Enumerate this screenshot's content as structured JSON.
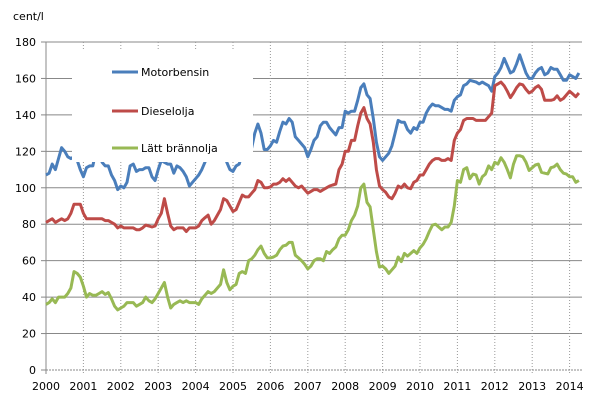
{
  "chart_data": {
    "type": "line",
    "title": "",
    "ylabel": "cent/l",
    "xlabel": "",
    "ylim": [
      0,
      180
    ],
    "yticks": [
      0,
      20,
      40,
      60,
      80,
      100,
      120,
      140,
      160,
      180
    ],
    "xticks": [
      "2000",
      "2001",
      "2002",
      "2003",
      "2004",
      "2005",
      "2006",
      "2007",
      "2008",
      "2009",
      "2010",
      "2011",
      "2012",
      "2013",
      "2014"
    ],
    "x_start": "2000-01",
    "x_frequency": "monthly",
    "grid": {
      "horizontal": "solid",
      "vertical": "dotted"
    },
    "legend_position": "top-left",
    "series": [
      {
        "name": "Motorbensin",
        "color": "#4a7ebb",
        "values": [
          107,
          108,
          113,
          110,
          116,
          122,
          120,
          117,
          116,
          117,
          115,
          110,
          106,
          111,
          112,
          112,
          120,
          122,
          114,
          112,
          112,
          107,
          104,
          99,
          101,
          100,
          103,
          112,
          113,
          109,
          110,
          110,
          111,
          111,
          106,
          104,
          110,
          115,
          114,
          113,
          113,
          108,
          112,
          111,
          109,
          106,
          101,
          103,
          105,
          107,
          110,
          114,
          118,
          115,
          117,
          118,
          117,
          119,
          114,
          110,
          109,
          112,
          113,
          119,
          118,
          118,
          122,
          130,
          135,
          130,
          121,
          121,
          123,
          126,
          125,
          131,
          136,
          135,
          138,
          136,
          128,
          126,
          124,
          122,
          117,
          121,
          126,
          128,
          134,
          136,
          136,
          133,
          131,
          129,
          133,
          133,
          142,
          141,
          142,
          142,
          148,
          155,
          157,
          151,
          149,
          138,
          125,
          117,
          115,
          117,
          119,
          123,
          130,
          137,
          136,
          136,
          132,
          130,
          133,
          132,
          136,
          136,
          141,
          144,
          146,
          145,
          145,
          144,
          143,
          143,
          142,
          148,
          150,
          151,
          156,
          157,
          159,
          158.5,
          158,
          157,
          158,
          157,
          156,
          153,
          161,
          163,
          166,
          171,
          167,
          163,
          164,
          168,
          173,
          168,
          163,
          160,
          160,
          163,
          165,
          166,
          162,
          163,
          166,
          165,
          165,
          162,
          159,
          159,
          162,
          161,
          160,
          163
        ]
      },
      {
        "name": "Dieselolja",
        "color": "#be4b48",
        "values": [
          81,
          82,
          83,
          81,
          82,
          83,
          82,
          83,
          86,
          91,
          91,
          91,
          86,
          83,
          83,
          83,
          83,
          83,
          83,
          82,
          82,
          81,
          80,
          78,
          79,
          78,
          78,
          78,
          78,
          77,
          77,
          78,
          79.5,
          79,
          78.5,
          79,
          83,
          86,
          94,
          86,
          79,
          77,
          78,
          78,
          78,
          76,
          78,
          78,
          78,
          79,
          82,
          83.5,
          85,
          80,
          82,
          85,
          88,
          94,
          93,
          90,
          87,
          88,
          92,
          96,
          95,
          95,
          97,
          99,
          104,
          103,
          100,
          100,
          100.5,
          102,
          102,
          103,
          105,
          103.5,
          105,
          103,
          101,
          100,
          101,
          99,
          97,
          98,
          99,
          99,
          98,
          99,
          100,
          101,
          101.5,
          102,
          110,
          113,
          120,
          120,
          126,
          126,
          134,
          141,
          144,
          138,
          135,
          125,
          110,
          101,
          99,
          97.5,
          95,
          94,
          97,
          101,
          100,
          102,
          100,
          99.5,
          103,
          104,
          107,
          107,
          110,
          113,
          115,
          116,
          116,
          115,
          115,
          116,
          115,
          126,
          130,
          132,
          137,
          138,
          138,
          138,
          137,
          137,
          137,
          137,
          139,
          141,
          156,
          157,
          158,
          156,
          153,
          149.5,
          152,
          155,
          157,
          156.5,
          154,
          152,
          153,
          155,
          156,
          154,
          148,
          148,
          148,
          148.5,
          150.5,
          148,
          149,
          151,
          153,
          151.5,
          150,
          152
        ]
      },
      {
        "name": "Lätt brännolja",
        "color": "#98b954",
        "values": [
          36,
          37,
          39,
          37,
          40,
          40,
          40,
          42,
          45,
          54,
          53,
          51,
          46,
          40,
          42,
          41,
          41,
          42,
          43,
          41.5,
          42.5,
          39,
          35,
          33,
          34,
          35,
          37,
          37,
          37,
          35,
          36,
          37,
          40,
          38,
          37,
          39,
          42,
          45,
          48,
          40,
          34,
          36,
          37,
          38,
          37,
          38,
          37,
          37,
          37,
          36,
          39,
          41,
          43,
          42,
          43,
          45,
          47,
          55,
          48,
          44,
          46,
          47,
          53,
          54,
          53,
          60,
          61,
          63,
          66,
          68,
          64,
          61.5,
          61.5,
          62,
          63,
          66,
          68,
          68.5,
          70,
          70,
          63,
          61.5,
          60,
          58,
          55.5,
          57,
          60,
          61,
          61,
          60,
          65,
          64,
          66,
          67.5,
          72,
          74,
          74,
          77,
          82,
          85,
          90,
          100,
          102,
          92,
          89.5,
          77,
          65,
          56.5,
          57,
          55.5,
          53,
          55,
          57,
          62,
          59.5,
          64,
          62.5,
          64,
          65.5,
          64,
          67,
          69,
          72,
          76,
          79.5,
          80,
          78.5,
          77,
          78.5,
          78.5,
          81,
          90,
          104,
          103,
          110,
          111,
          105,
          107.5,
          107,
          102,
          106,
          107.5,
          112,
          110,
          114,
          113,
          116.5,
          114,
          110,
          105.5,
          113,
          117.6,
          117.6,
          117,
          114,
          109.5,
          111,
          112.5,
          113,
          108.5,
          108,
          107.6,
          111,
          111.5,
          113,
          110,
          108,
          107.5,
          106,
          106,
          103,
          104
        ]
      }
    ]
  }
}
